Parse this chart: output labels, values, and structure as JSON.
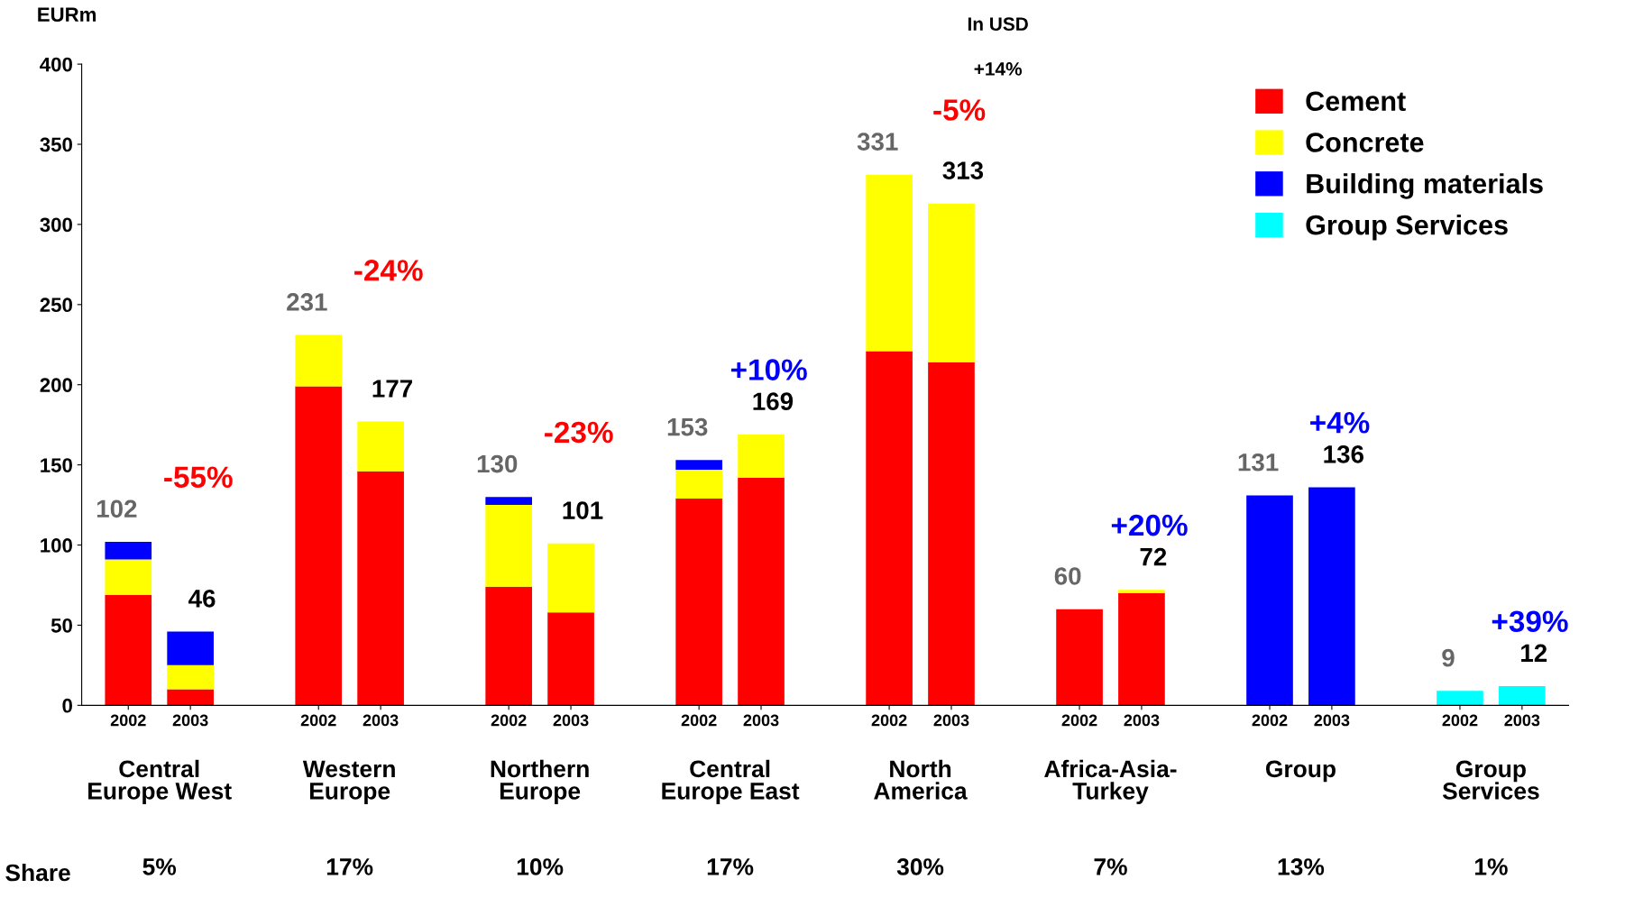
{
  "chart_data": {
    "type": "bar",
    "stacked": true,
    "ylabel": "EURm",
    "categories": [
      "2002",
      "2003",
      "2002",
      "2003",
      "2002",
      "2003",
      "2002",
      "2003",
      "2002",
      "2003",
      "2002",
      "2003",
      "2002",
      "2003",
      "2002",
      "2003"
    ],
    "series": [
      {
        "name": "Cement",
        "color": "#ff0000",
        "values": [
          69,
          10,
          199,
          146,
          74,
          58,
          129,
          142,
          221,
          214,
          60,
          70,
          null,
          null,
          null,
          null
        ]
      },
      {
        "name": "Concrete",
        "color": "#ffff00",
        "values": [
          22,
          15,
          32,
          31,
          51,
          43,
          18,
          27,
          110,
          99,
          null,
          2,
          null,
          null,
          null,
          null
        ]
      },
      {
        "name": "Building materials",
        "color": "#0000ff",
        "values": [
          11,
          21,
          null,
          null,
          5,
          null,
          6,
          null,
          null,
          null,
          null,
          null,
          131,
          136,
          null,
          null
        ]
      },
      {
        "name": "Group Services",
        "color": "#00ffff",
        "values": [
          null,
          null,
          null,
          null,
          null,
          null,
          null,
          null,
          null,
          null,
          null,
          null,
          null,
          null,
          9,
          12
        ]
      }
    ],
    "totals": [
      "102",
      "46",
      "231",
      "177",
      "130",
      "101",
      "153",
      "169",
      "331",
      "313",
      "60",
      "72",
      "131",
      "136",
      "9",
      "12"
    ],
    "ylim": [
      0,
      400
    ],
    "yticks": [
      0,
      50,
      100,
      150,
      200,
      250,
      300,
      350,
      400
    ],
    "grid": false,
    "legend": "top right",
    "annotations": [
      "Central\nEurope West",
      "Western\nEurope",
      "Northern\nEurope",
      "Central\nEurope East",
      "North\nAmerica",
      "Africa-Asia-\nTurkey",
      "Group",
      "Group\nServices",
      "Share",
      "5%",
      "17%",
      "10%",
      "17%",
      "30%",
      "7%",
      "13%",
      "1%",
      "-55%",
      "-24%",
      "-23%",
      "+10%",
      "-5%",
      "+20%",
      "+4%",
      "+39%",
      "In USD",
      "+14%"
    ]
  }
}
